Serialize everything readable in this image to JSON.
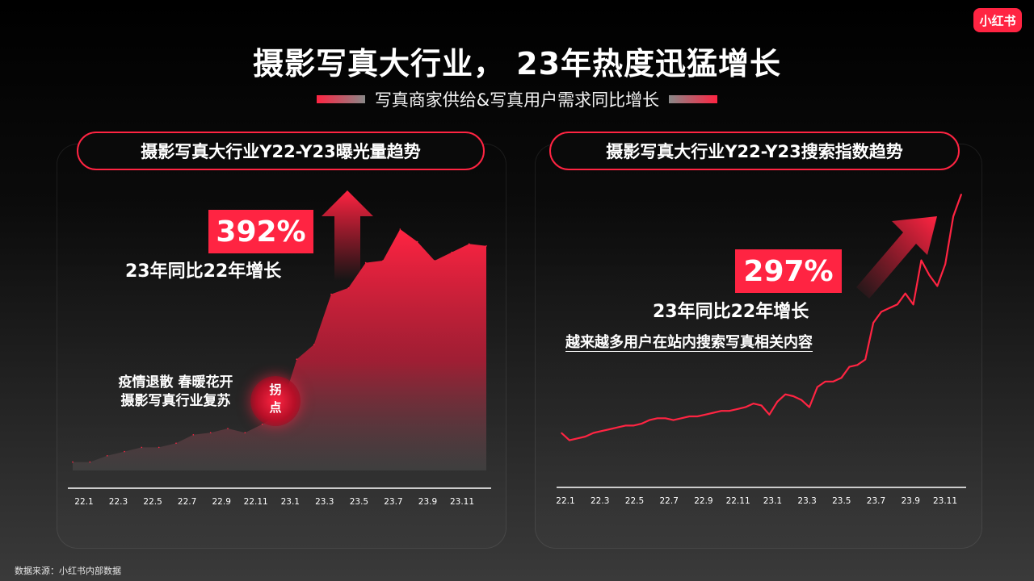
{
  "brand": {
    "logo_text": "小红书",
    "accent": "#ff2442"
  },
  "title": "摄影写真大行业， 23年热度迅猛增长",
  "subtitle": "写真商家供给&写真用户需求同比增长",
  "left_panel": {
    "heading": "摄影写真大行业Y22-Y23曝光量趋势",
    "badge": "392%",
    "growth_text": "23年同比22年增长",
    "note_line1": "疫情退散  春暖花开",
    "note_line2": "摄影写真行业复苏",
    "inflection_label": "拐\n点"
  },
  "right_panel": {
    "heading": "摄影写真大行业Y22-Y23搜索指数趋势",
    "badge": "297%",
    "growth_text": "23年同比22年增长",
    "description": "越来越多用户在站内搜索写真相关内容"
  },
  "source": "数据来源：小红书内部数据",
  "chart_data": [
    {
      "type": "area",
      "title": "摄影写真大行业Y22-Y23曝光量趋势",
      "x_tick_labels": [
        "22.1",
        "22.3",
        "22.5",
        "22.7",
        "22.9",
        "22.11",
        "23.1",
        "23.3",
        "23.5",
        "23.7",
        "23.9",
        "23.11"
      ],
      "x": [
        0,
        1,
        2,
        3,
        4,
        5,
        6,
        7,
        8,
        9,
        10,
        11,
        12,
        13,
        14,
        15,
        16,
        17,
        18,
        19,
        20,
        21,
        22,
        23,
        24
      ],
      "values": [
        4,
        4,
        7,
        9,
        11,
        11,
        13,
        17,
        18,
        20,
        18,
        22,
        27,
        53,
        60,
        84,
        87,
        99,
        100,
        115,
        109,
        100,
        104,
        108,
        107
      ],
      "ylim": [
        0,
        125
      ],
      "color": "#ff2442",
      "grid": false
    },
    {
      "type": "line",
      "title": "摄影写真大行业Y22-Y23搜索指数趋势",
      "x_tick_labels": [
        "22.1",
        "22.3",
        "22.5",
        "22.7",
        "22.9",
        "22.11",
        "23.1",
        "23.3",
        "23.5",
        "23.7",
        "23.9",
        "23.11"
      ],
      "x": [
        0,
        1,
        2,
        3,
        4,
        5,
        6,
        7,
        8,
        9,
        10,
        11,
        12,
        13,
        14,
        15,
        16,
        17,
        18,
        19,
        20,
        21,
        22,
        23,
        24,
        25,
        26,
        27,
        28,
        29,
        30,
        31,
        32,
        33,
        34,
        35,
        36,
        37,
        38,
        39,
        40,
        41,
        42,
        43,
        44,
        45,
        46,
        47,
        48,
        49,
        50
      ],
      "values": [
        20,
        16,
        17,
        18,
        20,
        21,
        22,
        23,
        24,
        24,
        25,
        27,
        28,
        28,
        27,
        28,
        29,
        29,
        30,
        31,
        32,
        32,
        33,
        34,
        36,
        35,
        30,
        37,
        41,
        40,
        38,
        34,
        45,
        48,
        48,
        50,
        56,
        57,
        60,
        80,
        86,
        88,
        90,
        96,
        90,
        114,
        106,
        100,
        112,
        138,
        150
      ],
      "ylim": [
        0,
        160
      ],
      "color": "#ff2442",
      "grid": false
    }
  ]
}
